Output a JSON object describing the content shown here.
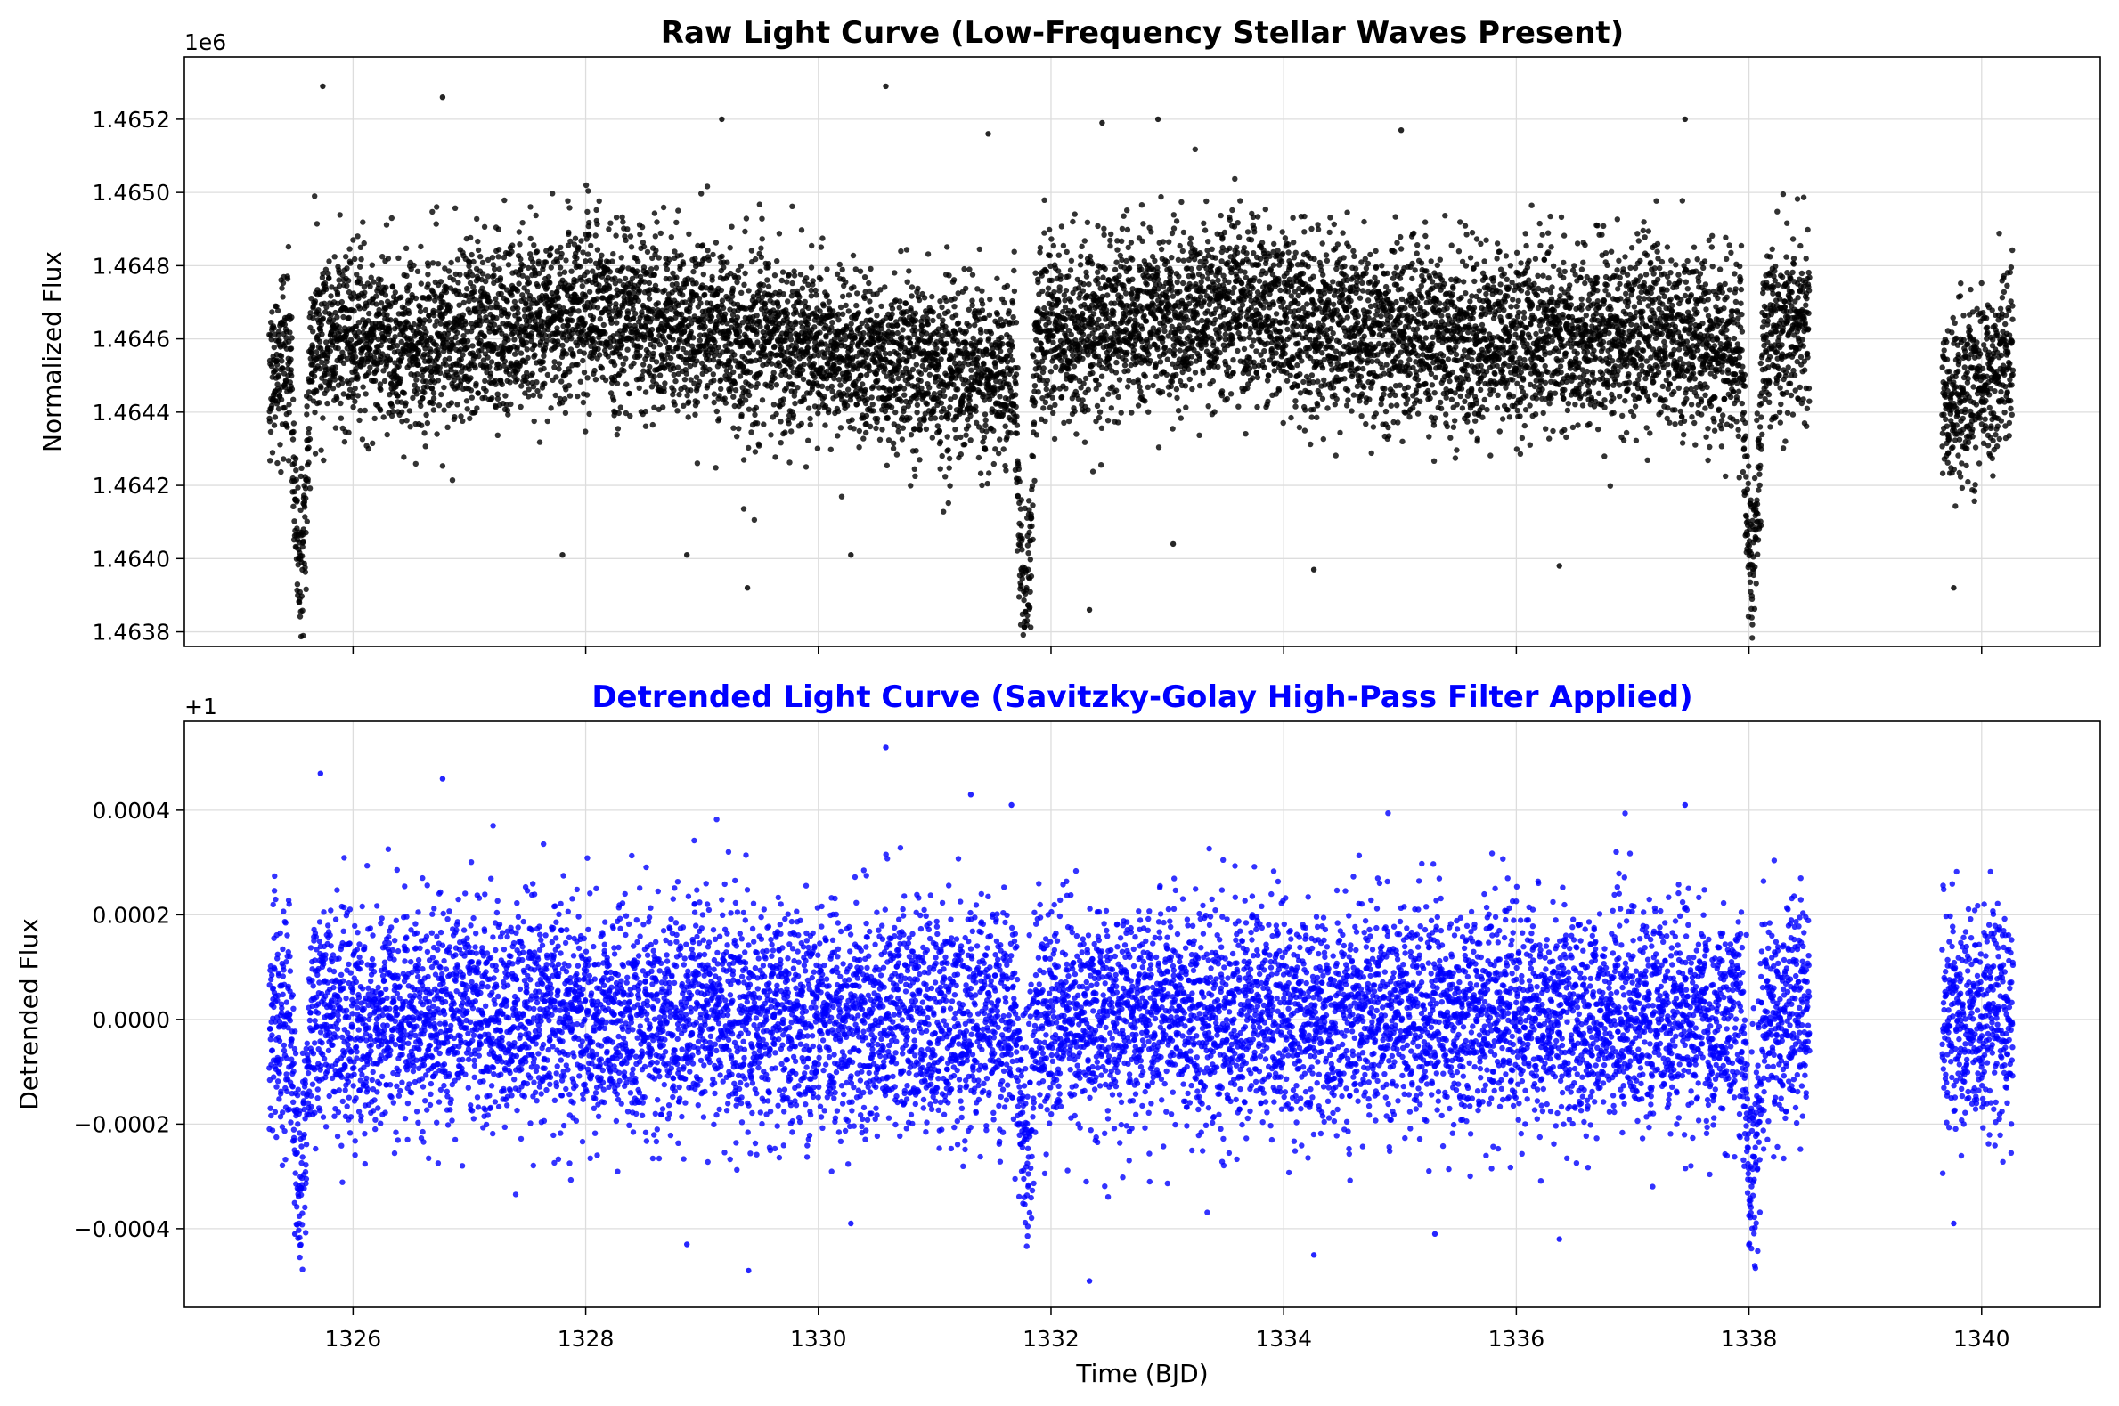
{
  "chart_data": [
    {
      "type": "scatter",
      "title": "Raw Light Curve (Low-Frequency Stellar Waves Present)",
      "title_color": "#000000",
      "ylabel": "Normalized Flux",
      "offset_label": "1e6",
      "marker_color": "#000000",
      "xlim": [
        1324.55,
        1341.02
      ],
      "ylim": [
        1.46376,
        1.46537
      ],
      "xticks": [
        1326,
        1328,
        1330,
        1332,
        1334,
        1336,
        1338,
        1340
      ],
      "xtick_labels_shown": false,
      "yticks": [
        1.4638,
        1.464,
        1.4642,
        1.4644,
        1.4646,
        1.4648,
        1.465,
        1.4652
      ],
      "ytick_labels": [
        "1.4638",
        "1.4640",
        "1.4642",
        "1.4644",
        "1.4646",
        "1.4648",
        "1.4650",
        "1.4652"
      ],
      "grid": true,
      "segments": [
        {
          "x_start": 1325.28,
          "x_end": 1338.52
        },
        {
          "x_start": 1339.66,
          "x_end": 1340.27
        }
      ],
      "trend_knots": {
        "x": [
          1325.3,
          1325.6,
          1326.0,
          1326.5,
          1327.0,
          1327.5,
          1328.0,
          1328.5,
          1329.0,
          1329.5,
          1330.0,
          1330.5,
          1331.0,
          1331.5,
          1331.8,
          1332.0,
          1332.5,
          1333.0,
          1333.5,
          1334.0,
          1334.5,
          1335.0,
          1335.5,
          1336.0,
          1336.5,
          1337.0,
          1337.5,
          1338.0,
          1338.5,
          1339.7,
          1340.0,
          1340.3
        ],
        "y": [
          1.4645,
          1.4646,
          1.46462,
          1.46458,
          1.46462,
          1.46465,
          1.46467,
          1.46466,
          1.46462,
          1.4646,
          1.46457,
          1.46453,
          1.46452,
          1.4645,
          1.46455,
          1.46462,
          1.46464,
          1.46466,
          1.46468,
          1.46466,
          1.46463,
          1.46462,
          1.4646,
          1.46461,
          1.4646,
          1.46461,
          1.4646,
          1.46457,
          1.46465,
          1.46443,
          1.46448,
          1.46458
        ]
      },
      "scatter_sigma": 0.00012,
      "transits": [
        {
          "center": 1325.55,
          "depth": 0.00058,
          "half_width": 0.09
        },
        {
          "center": 1331.78,
          "depth": 0.00065,
          "half_width": 0.09
        },
        {
          "center": 1338.03,
          "depth": 0.0006,
          "half_width": 0.09
        }
      ],
      "outliers": [
        {
          "x": 1325.74,
          "y": 1.46529
        },
        {
          "x": 1326.77,
          "y": 1.46526
        },
        {
          "x": 1329.17,
          "y": 1.4652
        },
        {
          "x": 1330.58,
          "y": 1.46529
        },
        {
          "x": 1332.44,
          "y": 1.46519
        },
        {
          "x": 1332.92,
          "y": 1.4652
        },
        {
          "x": 1337.45,
          "y": 1.4652
        },
        {
          "x": 1335.01,
          "y": 1.46517
        },
        {
          "x": 1331.46,
          "y": 1.46516
        },
        {
          "x": 1329.39,
          "y": 1.46392
        },
        {
          "x": 1332.33,
          "y": 1.46386
        },
        {
          "x": 1334.26,
          "y": 1.46397
        },
        {
          "x": 1336.37,
          "y": 1.46398
        },
        {
          "x": 1328.87,
          "y": 1.46401
        },
        {
          "x": 1330.28,
          "y": 1.46401
        },
        {
          "x": 1339.76,
          "y": 1.46392
        },
        {
          "x": 1327.8,
          "y": 1.46401
        },
        {
          "x": 1333.05,
          "y": 1.46404
        }
      ]
    },
    {
      "type": "scatter",
      "title": "Detrended Light Curve (Savitzky-Golay High-Pass Filter Applied)",
      "title_color": "#0000ff",
      "ylabel": "Detrended Flux",
      "xlabel": "Time (BJD)",
      "offset_label": "+1",
      "marker_color": "#0000ff",
      "xlim": [
        1324.55,
        1341.02
      ],
      "ylim": [
        -0.00055,
        0.00057
      ],
      "xticks": [
        1326,
        1328,
        1330,
        1332,
        1334,
        1336,
        1338,
        1340
      ],
      "xtick_labels": [
        "1326",
        "1328",
        "1330",
        "1332",
        "1334",
        "1336",
        "1338",
        "1340"
      ],
      "yticks": [
        -0.0004,
        -0.0002,
        0.0,
        0.0002,
        0.0004
      ],
      "ytick_labels": [
        "−0.0004",
        "−0.0002",
        "0.0000",
        "0.0002",
        "0.0004"
      ],
      "grid": true,
      "segments": [
        {
          "x_start": 1325.28,
          "x_end": 1338.52
        },
        {
          "x_start": 1339.66,
          "x_end": 1340.27
        }
      ],
      "trend_knots": {
        "x": [
          1325.3,
          1338.5,
          1339.7,
          1340.3
        ],
        "y": [
          0.0,
          0.0,
          0.0,
          0.0
        ]
      },
      "scatter_sigma": 0.000105,
      "transits": [
        {
          "center": 1325.55,
          "depth": 0.00028,
          "half_width": 0.09
        },
        {
          "center": 1331.78,
          "depth": 0.00022,
          "half_width": 0.09
        },
        {
          "center": 1338.03,
          "depth": 0.00028,
          "half_width": 0.09
        }
      ],
      "outliers": [
        {
          "x": 1325.72,
          "y": 0.00047
        },
        {
          "x": 1326.77,
          "y": 0.00046
        },
        {
          "x": 1330.58,
          "y": 0.00052
        },
        {
          "x": 1331.31,
          "y": 0.00043
        },
        {
          "x": 1337.45,
          "y": 0.00041
        },
        {
          "x": 1331.66,
          "y": 0.00041
        },
        {
          "x": 1329.4,
          "y": -0.00048
        },
        {
          "x": 1332.33,
          "y": -0.0005
        },
        {
          "x": 1334.26,
          "y": -0.00045
        },
        {
          "x": 1336.37,
          "y": -0.00042
        },
        {
          "x": 1328.87,
          "y": -0.00043
        },
        {
          "x": 1325.5,
          "y": -0.00041
        },
        {
          "x": 1339.76,
          "y": -0.00039
        },
        {
          "x": 1330.28,
          "y": -0.00039
        },
        {
          "x": 1335.3,
          "y": -0.00041
        }
      ]
    }
  ]
}
